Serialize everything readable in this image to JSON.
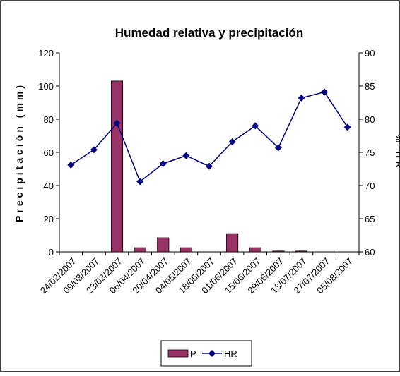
{
  "chart_data": {
    "type": "bar_line",
    "title": "Humedad relativa y precipitación",
    "categories": [
      "24/02/2007",
      "09/03/2007",
      "23/03/2007",
      "06/04/2007",
      "20/04/2007",
      "04/05/2007",
      "18/05/2007",
      "01/06/2007",
      "15/06/2007",
      "29/06/2007",
      "13/07/2007",
      "27/07/2007",
      "05/08/2007"
    ],
    "series": [
      {
        "name": "P",
        "color": "#993366",
        "values": [
          0,
          0,
          103,
          2.5,
          8.5,
          2.5,
          0,
          11,
          2.5,
          0.5,
          0.5,
          0,
          0
        ]
      },
      {
        "name": "HR",
        "color": "#000080",
        "axis": "y2",
        "values": [
          73.1,
          75.4,
          79.4,
          70.6,
          73.3,
          74.5,
          72.9,
          76.6,
          79.0,
          75.7,
          83.2,
          84.1,
          78.8
        ]
      }
    ],
    "ylabel": "Precipitación (mm)",
    "y2label": "% HR",
    "ylim": [
      0,
      120
    ],
    "yticks": [
      0,
      20,
      40,
      60,
      80,
      100,
      120
    ],
    "y2lim": [
      60,
      90
    ],
    "y2ticks": [
      60,
      65,
      70,
      75,
      80,
      85,
      90
    ],
    "legend": "bottom"
  }
}
